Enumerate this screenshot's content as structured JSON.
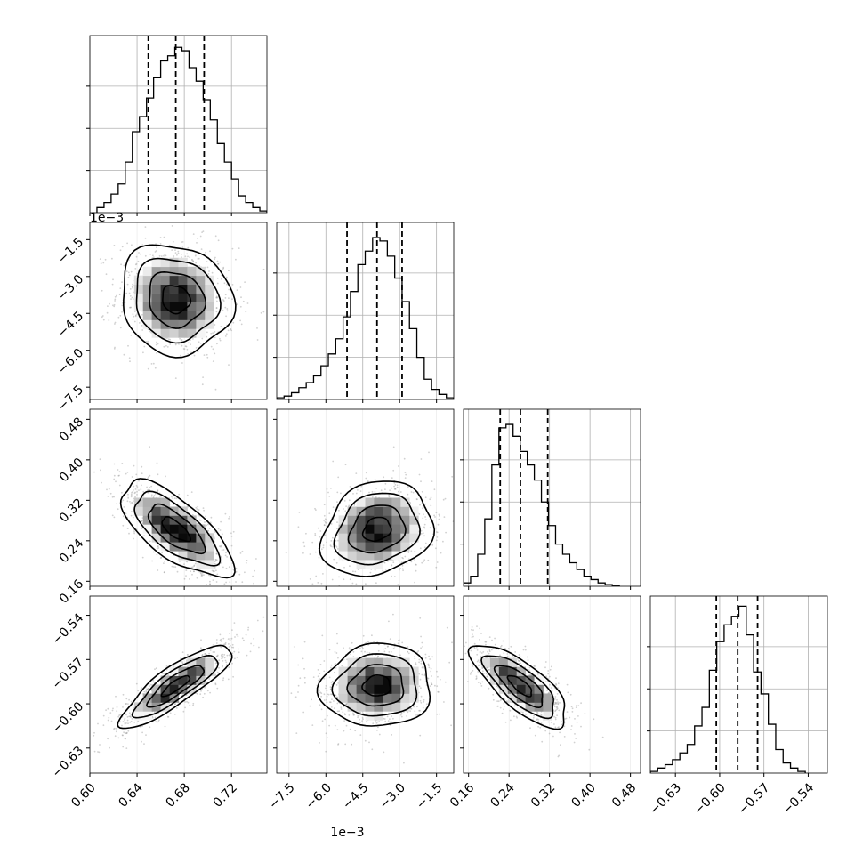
{
  "chart_data": {
    "type": "corner",
    "title": "",
    "parameters": [
      {
        "name": "",
        "range": [
          0.6,
          0.75
        ],
        "ticks": [
          0.6,
          0.64,
          0.68,
          0.72
        ],
        "tick_labels": [
          "0.60",
          "0.64",
          "0.68",
          "0.72"
        ],
        "offset_text": "",
        "quantiles": [
          0.6495,
          0.6728,
          0.6968
        ],
        "hist_bin_width": 0.006,
        "histogram": [
          [
            0.609,
            0.03
          ],
          [
            0.615,
            0.06
          ],
          [
            0.621,
            0.11
          ],
          [
            0.627,
            0.17
          ],
          [
            0.633,
            0.3
          ],
          [
            0.639,
            0.48
          ],
          [
            0.645,
            0.57
          ],
          [
            0.651,
            0.68
          ],
          [
            0.657,
            0.8
          ],
          [
            0.663,
            0.9
          ],
          [
            0.669,
            0.93
          ],
          [
            0.675,
            0.98
          ],
          [
            0.681,
            0.96
          ],
          [
            0.687,
            0.86
          ],
          [
            0.693,
            0.78
          ],
          [
            0.699,
            0.67
          ],
          [
            0.705,
            0.55
          ],
          [
            0.711,
            0.41
          ],
          [
            0.717,
            0.3
          ],
          [
            0.723,
            0.2
          ],
          [
            0.729,
            0.1
          ],
          [
            0.735,
            0.06
          ],
          [
            0.741,
            0.03
          ],
          [
            0.747,
            0.01
          ]
        ]
      },
      {
        "name": "",
        "range": [
          -0.008,
          -0.0008
        ],
        "ticks": [
          -0.0075,
          -0.006,
          -0.0045,
          -0.003,
          -0.0015
        ],
        "tick_labels": [
          "−7.5",
          "−6.0",
          "−4.5",
          "−3.0",
          "−1.5"
        ],
        "offset_text": "1e−3",
        "quantiles": [
          -0.00514,
          -0.00392,
          -0.0029
        ],
        "hist_bin_width": 0.0003,
        "histogram": [
          [
            -0.00785,
            0.01
          ],
          [
            -0.00755,
            0.02
          ],
          [
            -0.00725,
            0.04
          ],
          [
            -0.00695,
            0.07
          ],
          [
            -0.00665,
            0.1
          ],
          [
            -0.00635,
            0.14
          ],
          [
            -0.00605,
            0.2
          ],
          [
            -0.00575,
            0.27
          ],
          [
            -0.00545,
            0.36
          ],
          [
            -0.00515,
            0.49
          ],
          [
            -0.00485,
            0.64
          ],
          [
            -0.00455,
            0.8
          ],
          [
            -0.00425,
            0.88
          ],
          [
            -0.00395,
            0.96
          ],
          [
            -0.00365,
            0.94
          ],
          [
            -0.00335,
            0.85
          ],
          [
            -0.00305,
            0.72
          ],
          [
            -0.00275,
            0.58
          ],
          [
            -0.00245,
            0.42
          ],
          [
            -0.00215,
            0.25
          ],
          [
            -0.00185,
            0.12
          ],
          [
            -0.00155,
            0.06
          ],
          [
            -0.00125,
            0.03
          ],
          [
            -0.00095,
            0.01
          ]
        ]
      },
      {
        "name": "",
        "range": [
          0.15,
          0.5
        ],
        "ticks": [
          0.16,
          0.24,
          0.32,
          0.4,
          0.48
        ],
        "tick_labels": [
          "0.16",
          "0.24",
          "0.32",
          "0.40",
          "0.48"
        ],
        "offset_text": "",
        "quantiles": [
          0.2225,
          0.2625,
          0.3165
        ],
        "hist_bin_width": 0.014,
        "histogram": [
          [
            0.157,
            0.02
          ],
          [
            0.171,
            0.06
          ],
          [
            0.185,
            0.19
          ],
          [
            0.199,
            0.4
          ],
          [
            0.213,
            0.72
          ],
          [
            0.227,
            0.94
          ],
          [
            0.241,
            0.96
          ],
          [
            0.255,
            0.89
          ],
          [
            0.269,
            0.8
          ],
          [
            0.283,
            0.72
          ],
          [
            0.297,
            0.63
          ],
          [
            0.311,
            0.5
          ],
          [
            0.325,
            0.36
          ],
          [
            0.339,
            0.25
          ],
          [
            0.353,
            0.19
          ],
          [
            0.367,
            0.14
          ],
          [
            0.381,
            0.1
          ],
          [
            0.395,
            0.06
          ],
          [
            0.409,
            0.04
          ],
          [
            0.423,
            0.02
          ],
          [
            0.437,
            0.01
          ],
          [
            0.451,
            0.005
          ]
        ]
      },
      {
        "name": "",
        "range": [
          -0.647,
          -0.527
        ],
        "ticks": [
          -0.63,
          -0.6,
          -0.57,
          -0.54
        ],
        "tick_labels": [
          "−0.63",
          "−0.60",
          "−0.57",
          "−0.54"
        ],
        "offset_text": "",
        "quantiles": [
          -0.6023,
          -0.5878,
          -0.5743
        ],
        "hist_bin_width": 0.005,
        "histogram": [
          [
            -0.6445,
            0.01
          ],
          [
            -0.6395,
            0.03
          ],
          [
            -0.6345,
            0.05
          ],
          [
            -0.6295,
            0.08
          ],
          [
            -0.6245,
            0.12
          ],
          [
            -0.6195,
            0.17
          ],
          [
            -0.6145,
            0.28
          ],
          [
            -0.6095,
            0.39
          ],
          [
            -0.6045,
            0.61
          ],
          [
            -0.5995,
            0.78
          ],
          [
            -0.5945,
            0.88
          ],
          [
            -0.5895,
            0.93
          ],
          [
            -0.5845,
            0.99
          ],
          [
            -0.5795,
            0.82
          ],
          [
            -0.5745,
            0.6
          ],
          [
            -0.5695,
            0.47
          ],
          [
            -0.5645,
            0.29
          ],
          [
            -0.5595,
            0.14
          ],
          [
            -0.5545,
            0.06
          ],
          [
            -0.5495,
            0.03
          ],
          [
            -0.5445,
            0.01
          ]
        ]
      }
    ],
    "correlations": {
      "1_0": -0.1,
      "2_0": -0.7,
      "2_1": 0.2,
      "3_0": 0.85,
      "3_1": 0.05,
      "3_2": -0.75
    },
    "scatter_points_per_panel": 900,
    "contour_levels": [
      0.5,
      1.0,
      1.5,
      2.0
    ],
    "grid": true
  }
}
